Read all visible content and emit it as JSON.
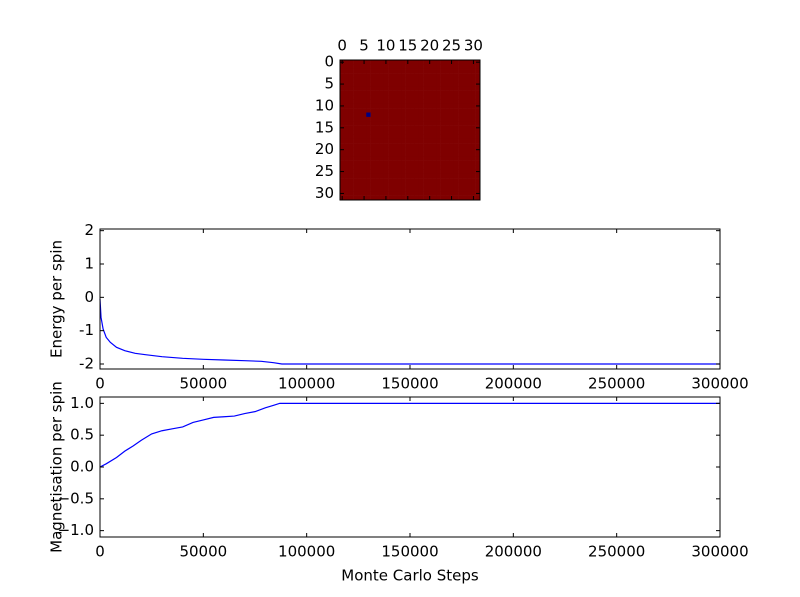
{
  "chart_data": [
    {
      "type": "image",
      "xlim": [
        -0.5,
        31.5
      ],
      "ylim": [
        31.5,
        -0.5
      ],
      "xticks": [
        0,
        5,
        10,
        15,
        20,
        25,
        30
      ],
      "yticks": [
        0,
        5,
        10,
        15,
        20,
        25,
        30
      ],
      "xtick_position": "top",
      "clim": [
        -1,
        1
      ],
      "color_low": "#00007f",
      "color_high": "#7f0000",
      "values": [
        [
          1,
          1,
          1,
          1,
          1,
          1,
          1,
          1,
          1,
          1,
          1,
          1,
          1,
          1,
          1,
          1,
          1,
          1,
          1,
          1,
          1,
          1,
          1,
          1,
          1,
          1,
          1,
          1,
          1,
          1,
          1,
          1
        ],
        [
          1,
          1,
          1,
          1,
          1,
          1,
          1,
          1,
          1,
          1,
          1,
          1,
          1,
          1,
          1,
          1,
          1,
          1,
          1,
          1,
          1,
          1,
          1,
          1,
          1,
          1,
          1,
          1,
          1,
          1,
          1,
          1
        ],
        [
          1,
          1,
          1,
          1,
          1,
          1,
          1,
          1,
          1,
          1,
          1,
          1,
          1,
          1,
          1,
          1,
          1,
          1,
          1,
          1,
          1,
          1,
          1,
          1,
          1,
          1,
          1,
          1,
          1,
          1,
          1,
          1
        ],
        [
          1,
          1,
          1,
          1,
          1,
          1,
          1,
          1,
          1,
          1,
          1,
          1,
          1,
          1,
          1,
          1,
          1,
          1,
          1,
          1,
          1,
          1,
          1,
          1,
          1,
          1,
          1,
          1,
          1,
          1,
          1,
          1
        ],
        [
          1,
          1,
          1,
          1,
          1,
          1,
          1,
          1,
          1,
          1,
          1,
          1,
          1,
          1,
          1,
          1,
          1,
          1,
          1,
          1,
          1,
          1,
          1,
          1,
          1,
          1,
          1,
          1,
          1,
          1,
          1,
          1
        ],
        [
          1,
          1,
          1,
          1,
          1,
          1,
          1,
          1,
          1,
          1,
          1,
          1,
          1,
          1,
          1,
          1,
          1,
          1,
          1,
          1,
          1,
          1,
          1,
          1,
          1,
          1,
          1,
          1,
          1,
          1,
          1,
          1
        ],
        [
          1,
          1,
          1,
          1,
          1,
          1,
          1,
          1,
          1,
          1,
          1,
          1,
          1,
          1,
          1,
          1,
          1,
          1,
          1,
          1,
          1,
          1,
          1,
          1,
          1,
          1,
          1,
          1,
          1,
          1,
          1,
          1
        ],
        [
          1,
          1,
          1,
          1,
          1,
          1,
          1,
          1,
          1,
          1,
          1,
          1,
          1,
          1,
          1,
          1,
          1,
          1,
          1,
          1,
          1,
          1,
          1,
          1,
          1,
          1,
          1,
          1,
          1,
          1,
          1,
          1
        ],
        [
          1,
          1,
          1,
          1,
          1,
          1,
          1,
          1,
          1,
          1,
          1,
          1,
          1,
          1,
          1,
          1,
          1,
          1,
          1,
          1,
          1,
          1,
          1,
          1,
          1,
          1,
          1,
          1,
          1,
          1,
          1,
          1
        ],
        [
          1,
          1,
          1,
          1,
          1,
          1,
          1,
          1,
          1,
          1,
          1,
          1,
          1,
          1,
          1,
          1,
          1,
          1,
          1,
          1,
          1,
          1,
          1,
          1,
          1,
          1,
          1,
          1,
          1,
          1,
          1,
          1
        ],
        [
          1,
          1,
          1,
          1,
          1,
          1,
          1,
          1,
          1,
          1,
          1,
          1,
          1,
          1,
          1,
          1,
          1,
          1,
          1,
          1,
          1,
          1,
          1,
          1,
          1,
          1,
          1,
          1,
          1,
          1,
          1,
          1
        ],
        [
          1,
          1,
          1,
          1,
          1,
          1,
          1,
          1,
          1,
          1,
          1,
          1,
          1,
          1,
          1,
          1,
          1,
          1,
          1,
          1,
          1,
          1,
          1,
          1,
          1,
          1,
          1,
          1,
          1,
          1,
          1,
          1
        ],
        [
          1,
          1,
          1,
          1,
          1,
          1,
          -1,
          1,
          1,
          1,
          1,
          1,
          1,
          1,
          1,
          1,
          1,
          1,
          1,
          1,
          1,
          1,
          1,
          1,
          1,
          1,
          1,
          1,
          1,
          1,
          1,
          1
        ],
        [
          1,
          1,
          1,
          1,
          1,
          1,
          1,
          1,
          1,
          1,
          1,
          1,
          1,
          1,
          1,
          1,
          1,
          1,
          1,
          1,
          1,
          1,
          1,
          1,
          1,
          1,
          1,
          1,
          1,
          1,
          1,
          1
        ],
        [
          1,
          1,
          1,
          1,
          1,
          1,
          1,
          1,
          1,
          1,
          1,
          1,
          1,
          1,
          1,
          1,
          1,
          1,
          1,
          1,
          1,
          1,
          1,
          1,
          1,
          1,
          1,
          1,
          1,
          1,
          1,
          1
        ],
        [
          1,
          1,
          1,
          1,
          1,
          1,
          1,
          1,
          1,
          1,
          1,
          1,
          1,
          1,
          1,
          1,
          1,
          1,
          1,
          1,
          1,
          1,
          1,
          1,
          1,
          1,
          1,
          1,
          1,
          1,
          1,
          1
        ],
        [
          1,
          1,
          1,
          1,
          1,
          1,
          1,
          1,
          1,
          1,
          1,
          1,
          1,
          1,
          1,
          1,
          1,
          1,
          1,
          1,
          1,
          1,
          1,
          1,
          1,
          1,
          1,
          1,
          1,
          1,
          1,
          1
        ],
        [
          1,
          1,
          1,
          1,
          1,
          1,
          1,
          1,
          1,
          1,
          1,
          1,
          1,
          1,
          1,
          1,
          1,
          1,
          1,
          1,
          1,
          1,
          1,
          1,
          1,
          1,
          1,
          1,
          1,
          1,
          1,
          1
        ],
        [
          1,
          1,
          1,
          1,
          1,
          1,
          1,
          1,
          1,
          1,
          1,
          1,
          1,
          1,
          1,
          1,
          1,
          1,
          1,
          1,
          1,
          1,
          1,
          1,
          1,
          1,
          1,
          1,
          1,
          1,
          1,
          1
        ],
        [
          1,
          1,
          1,
          1,
          1,
          1,
          1,
          1,
          1,
          1,
          1,
          1,
          1,
          1,
          1,
          1,
          1,
          1,
          1,
          1,
          1,
          1,
          1,
          1,
          1,
          1,
          1,
          1,
          1,
          1,
          1,
          1
        ],
        [
          1,
          1,
          1,
          1,
          1,
          1,
          1,
          1,
          1,
          1,
          1,
          1,
          1,
          1,
          1,
          1,
          1,
          1,
          1,
          1,
          1,
          1,
          1,
          1,
          1,
          1,
          1,
          1,
          1,
          1,
          1,
          1
        ],
        [
          1,
          1,
          1,
          1,
          1,
          1,
          1,
          1,
          1,
          1,
          1,
          1,
          1,
          1,
          1,
          1,
          1,
          1,
          1,
          1,
          1,
          1,
          1,
          1,
          1,
          1,
          1,
          1,
          1,
          1,
          1,
          1
        ],
        [
          1,
          1,
          1,
          1,
          1,
          1,
          1,
          1,
          1,
          1,
          1,
          1,
          1,
          1,
          1,
          1,
          1,
          1,
          1,
          1,
          1,
          1,
          1,
          1,
          1,
          1,
          1,
          1,
          1,
          1,
          1,
          1
        ],
        [
          1,
          1,
          1,
          1,
          1,
          1,
          1,
          1,
          1,
          1,
          1,
          1,
          1,
          1,
          1,
          1,
          1,
          1,
          1,
          1,
          1,
          1,
          1,
          1,
          1,
          1,
          1,
          1,
          1,
          1,
          1,
          1
        ],
        [
          1,
          1,
          1,
          1,
          1,
          1,
          1,
          1,
          1,
          1,
          1,
          1,
          1,
          1,
          1,
          1,
          1,
          1,
          1,
          1,
          1,
          1,
          1,
          1,
          1,
          1,
          1,
          1,
          1,
          1,
          1,
          1
        ],
        [
          1,
          1,
          1,
          1,
          1,
          1,
          1,
          1,
          1,
          1,
          1,
          1,
          1,
          1,
          1,
          1,
          1,
          1,
          1,
          1,
          1,
          1,
          1,
          1,
          1,
          1,
          1,
          1,
          1,
          1,
          1,
          1
        ],
        [
          1,
          1,
          1,
          1,
          1,
          1,
          1,
          1,
          1,
          1,
          1,
          1,
          1,
          1,
          1,
          1,
          1,
          1,
          1,
          1,
          1,
          1,
          1,
          1,
          1,
          1,
          1,
          1,
          1,
          1,
          1,
          1
        ],
        [
          1,
          1,
          1,
          1,
          1,
          1,
          1,
          1,
          1,
          1,
          1,
          1,
          1,
          1,
          1,
          1,
          1,
          1,
          1,
          1,
          1,
          1,
          1,
          1,
          1,
          1,
          1,
          1,
          1,
          1,
          1,
          1
        ],
        [
          1,
          1,
          1,
          1,
          1,
          1,
          1,
          1,
          1,
          1,
          1,
          1,
          1,
          1,
          1,
          1,
          1,
          1,
          1,
          1,
          1,
          1,
          1,
          1,
          1,
          1,
          1,
          1,
          1,
          1,
          1,
          1
        ],
        [
          1,
          1,
          1,
          1,
          1,
          1,
          1,
          1,
          1,
          1,
          1,
          1,
          1,
          1,
          1,
          1,
          1,
          1,
          1,
          1,
          1,
          1,
          1,
          1,
          1,
          1,
          1,
          1,
          1,
          1,
          1,
          1
        ],
        [
          1,
          1,
          1,
          1,
          1,
          1,
          1,
          1,
          1,
          1,
          1,
          1,
          1,
          1,
          1,
          1,
          1,
          1,
          1,
          1,
          1,
          1,
          1,
          1,
          1,
          1,
          1,
          1,
          1,
          1,
          1,
          1
        ],
        [
          1,
          1,
          1,
          1,
          1,
          1,
          1,
          1,
          1,
          1,
          1,
          1,
          1,
          1,
          1,
          1,
          1,
          1,
          1,
          1,
          1,
          1,
          1,
          1,
          1,
          1,
          1,
          1,
          1,
          1,
          1,
          1
        ]
      ]
    },
    {
      "type": "line",
      "ylabel": "Energy per spin",
      "xlim": [
        0,
        300000
      ],
      "ylim": [
        -2.15,
        2.05
      ],
      "xticks": [
        0,
        50000,
        100000,
        150000,
        200000,
        250000,
        300000
      ],
      "yticks": [
        -2,
        -1,
        0,
        1,
        2
      ],
      "color": "#0000ff",
      "x": [
        0,
        500,
        1500,
        3000,
        5000,
        8000,
        12000,
        17000,
        22000,
        30000,
        40000,
        50000,
        60000,
        70000,
        78000,
        84000,
        88000,
        120000,
        200000,
        300000
      ],
      "values": [
        -0.05,
        -0.6,
        -0.95,
        -1.2,
        -1.35,
        -1.5,
        -1.6,
        -1.68,
        -1.72,
        -1.78,
        -1.83,
        -1.86,
        -1.88,
        -1.9,
        -1.92,
        -1.96,
        -2.0,
        -2.0,
        -2.0,
        -2.0
      ]
    },
    {
      "type": "line",
      "ylabel": "Magnetisation per spin",
      "xlabel": "Monte Carlo Steps",
      "xlim": [
        0,
        300000
      ],
      "ylim": [
        -1.1,
        1.1
      ],
      "xticks": [
        0,
        50000,
        100000,
        150000,
        200000,
        250000,
        300000
      ],
      "yticks": [
        {
          "value": -1,
          "label": "−1.0"
        },
        {
          "value": -0.5,
          "label": "−0.5"
        },
        {
          "value": 0,
          "label": "0.0"
        },
        {
          "value": 0.5,
          "label": "0.5"
        },
        {
          "value": 1,
          "label": "1.0"
        }
      ],
      "color": "#0000ff",
      "x": [
        0,
        3000,
        8000,
        12000,
        16000,
        20000,
        25000,
        30000,
        35000,
        40000,
        45000,
        50000,
        55000,
        60000,
        65000,
        70000,
        75000,
        80000,
        84000,
        87000,
        150000,
        300000
      ],
      "values": [
        0.0,
        0.05,
        0.15,
        0.25,
        0.33,
        0.42,
        0.52,
        0.57,
        0.6,
        0.63,
        0.7,
        0.74,
        0.78,
        0.79,
        0.8,
        0.84,
        0.87,
        0.93,
        0.97,
        1.0,
        1.0,
        1.0
      ]
    }
  ]
}
